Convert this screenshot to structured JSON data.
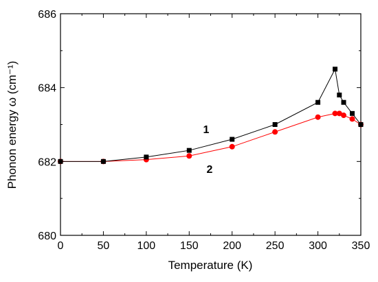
{
  "chart_data": {
    "type": "line",
    "xlabel": "Temperature (K)",
    "ylabel": "Phonon energy ω (cm⁻¹)",
    "xlim": [
      0,
      350
    ],
    "ylim": [
      680,
      686
    ],
    "xticks": [
      "0",
      "50",
      "100",
      "150",
      "200",
      "250",
      "300",
      "350"
    ],
    "yticks": [
      "680",
      "682",
      "684",
      "686"
    ],
    "series": [
      {
        "name": "1",
        "color": "#000000",
        "marker": "square",
        "x": [
          0,
          50,
          100,
          150,
          200,
          250,
          300,
          320,
          325,
          330,
          340,
          350
        ],
        "y": [
          682.0,
          682.0,
          682.12,
          682.3,
          682.6,
          683.0,
          683.6,
          684.5,
          683.8,
          683.6,
          683.3,
          683.0
        ]
      },
      {
        "name": "2",
        "color": "#ff0000",
        "marker": "circle",
        "x": [
          0,
          50,
          100,
          150,
          200,
          250,
          300,
          320,
          325,
          330,
          340,
          350
        ],
        "y": [
          682.0,
          682.0,
          682.05,
          682.15,
          682.4,
          682.8,
          683.2,
          683.3,
          683.3,
          683.25,
          683.15,
          683.0
        ]
      }
    ],
    "annotations": [
      "1",
      "2"
    ],
    "legend": "none",
    "grid": false
  }
}
